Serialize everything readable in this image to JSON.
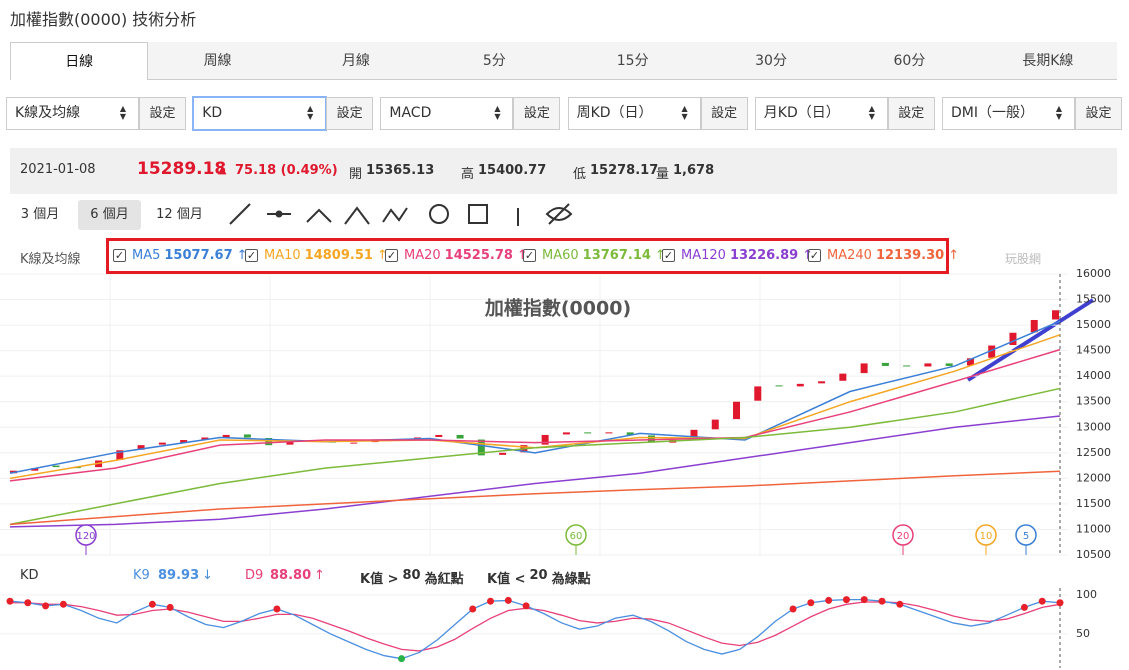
{
  "header": {
    "title": "加權指數(0000) 技術分析",
    "watermark": "玩股網"
  },
  "tabs": {
    "items": [
      "日線",
      "周線",
      "月線",
      "5分",
      "15分",
      "30分",
      "60分",
      "長期K線"
    ],
    "active": 0
  },
  "selectors": [
    {
      "label": "K線及均線",
      "button": "設定"
    },
    {
      "label": "KD",
      "button": "設定"
    },
    {
      "label": "MACD",
      "button": "設定"
    },
    {
      "label": "周KD（日）",
      "button": "設定"
    },
    {
      "label": "月KD（日）",
      "button": "設定"
    },
    {
      "label": "DMI（一般）",
      "button": "設定"
    }
  ],
  "quote": {
    "date": "2021-01-08",
    "price": "15289.18",
    "change": "75.18 (0.49%)",
    "fields": [
      {
        "label": "開",
        "value": "15365.13"
      },
      {
        "label": "高",
        "value": "15400.77"
      },
      {
        "label": "低",
        "value": "15278.17"
      },
      {
        "label": "量",
        "value": "1,678"
      }
    ]
  },
  "ranges": {
    "items": [
      "3 個月",
      "6 個月",
      "12 個月"
    ],
    "active": 1
  },
  "ma_legend": {
    "label": "K線及均線",
    "items": [
      {
        "name": "MA5",
        "value": "15077.67",
        "arrow": "↑"
      },
      {
        "name": "MA10",
        "value": "14809.51",
        "arrow": "↑"
      },
      {
        "name": "MA20",
        "value": "14525.78",
        "arrow": "↑"
      },
      {
        "name": "MA60",
        "value": "13767.14",
        "arrow": "↑"
      },
      {
        "name": "MA120",
        "value": "13226.89",
        "arrow": "↑"
      },
      {
        "name": "MA240",
        "value": "12139.30",
        "arrow": "↑"
      }
    ]
  },
  "chart_data": [
    {
      "type": "candlestick",
      "title": "加權指數(0000)",
      "ylim": [
        10500,
        16000
      ],
      "yticks": [
        10500,
        11000,
        11500,
        12000,
        12500,
        13000,
        13500,
        14000,
        14500,
        15000,
        15500,
        16000
      ],
      "up_color": "#e0182d",
      "down_color": "#3aa33c",
      "open": [
        12100,
        12150,
        12250,
        12230,
        12220,
        12360,
        12560,
        12660,
        12700,
        12760,
        12800,
        12860,
        12790,
        12660,
        12750,
        12720,
        12690,
        12710,
        12750,
        12770,
        12810,
        12850,
        12760,
        12460,
        12510,
        12660,
        12860,
        12900,
        12880,
        12900,
        12840,
        12700,
        12760,
        12960,
        13160,
        13520,
        13820,
        13800,
        13860,
        13910,
        14060,
        14260,
        14210,
        14190,
        14250,
        14210,
        14360,
        14610,
        14860,
        15110
      ],
      "close": [
        12150,
        12200,
        12220,
        12200,
        12350,
        12550,
        12650,
        12700,
        12750,
        12800,
        12850,
        12800,
        12650,
        12750,
        12720,
        12700,
        12700,
        12750,
        12760,
        12800,
        12850,
        12780,
        12450,
        12500,
        12650,
        12850,
        12900,
        12880,
        12900,
        12850,
        12700,
        12750,
        12950,
        13150,
        13500,
        13800,
        13800,
        13850,
        13900,
        14050,
        14250,
        14200,
        14200,
        14250,
        14200,
        14350,
        14600,
        14850,
        15100,
        15290
      ],
      "ma_series": [
        {
          "name": "MA5",
          "color": "#3b7fd6",
          "values": [
            12100,
            12500,
            12800,
            12720,
            12780,
            12500,
            12880,
            12750,
            13700,
            14200,
            15077
          ]
        },
        {
          "name": "MA10",
          "color": "#f5a623",
          "values": [
            12000,
            12350,
            12750,
            12720,
            12750,
            12600,
            12800,
            12780,
            13500,
            14100,
            14810
          ]
        },
        {
          "name": "MA20",
          "color": "#e8407a",
          "values": [
            11950,
            12200,
            12650,
            12750,
            12750,
            12700,
            12750,
            12800,
            13300,
            13900,
            14520
          ]
        },
        {
          "name": "MA60",
          "color": "#7cba3a",
          "values": [
            11100,
            11500,
            11900,
            12200,
            12400,
            12600,
            12700,
            12800,
            13000,
            13300,
            13760
          ]
        },
        {
          "name": "MA120",
          "color": "#8a3fd1",
          "values": [
            11050,
            11100,
            11200,
            11400,
            11650,
            11900,
            12100,
            12400,
            12700,
            13000,
            13220
          ]
        },
        {
          "name": "MA240",
          "color": "#f0643c",
          "values": [
            11100,
            11250,
            11400,
            11500,
            11600,
            11700,
            11780,
            11850,
            11950,
            12050,
            12140
          ]
        }
      ],
      "period_markers": [
        "120",
        "60",
        "20",
        "10",
        "5"
      ]
    },
    {
      "type": "line",
      "title": "KD",
      "ylim": [
        6,
        109
      ],
      "yticks": [
        50,
        100
      ],
      "k": {
        "name": "K9",
        "value": "89.93",
        "arrow": "↓",
        "color": "#4a8fe0",
        "values": [
          92,
          90,
          86,
          88,
          80,
          70,
          64,
          78,
          88,
          84,
          72,
          62,
          58,
          66,
          76,
          82,
          74,
          62,
          50,
          40,
          30,
          22,
          18,
          26,
          42,
          62,
          82,
          92,
          93,
          86,
          76,
          64,
          56,
          60,
          70,
          74,
          66,
          54,
          40,
          30,
          24,
          30,
          46,
          66,
          82,
          90,
          93,
          94,
          94,
          92,
          88,
          80,
          72,
          64,
          60,
          64,
          74,
          84,
          92,
          90
        ]
      },
      "d": {
        "name": "D9",
        "value": "88.80",
        "arrow": "↑",
        "color": "#e8407a",
        "values": [
          90,
          90,
          88,
          88,
          85,
          80,
          74,
          75,
          80,
          82,
          78,
          72,
          66,
          66,
          70,
          75,
          75,
          70,
          62,
          54,
          45,
          37,
          30,
          28,
          33,
          43,
          57,
          70,
          80,
          83,
          80,
          74,
          67,
          64,
          66,
          70,
          69,
          64,
          55,
          46,
          38,
          35,
          39,
          48,
          60,
          72,
          82,
          88,
          91,
          91,
          90,
          86,
          80,
          73,
          68,
          66,
          69,
          76,
          84,
          88
        ]
      },
      "notes": [
        {
          "before": "K值 >",
          "threshold": 80,
          "after": "為紅點",
          "color": "#e8202a"
        },
        {
          "before": "K值 <",
          "threshold": 20,
          "after": "為綠點",
          "color": "#2bb34a"
        }
      ]
    }
  ]
}
